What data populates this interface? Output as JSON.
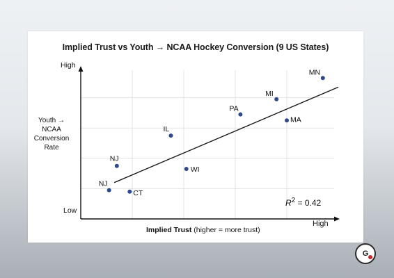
{
  "chart_data": {
    "type": "scatter",
    "title": "Implied Trust vs Youth → NCAA Hockey Conversion (9 US States)",
    "ylabel_lines": [
      "Youth →",
      "NCAA",
      "Conversion",
      "Rate"
    ],
    "xlabel_bold": "Implied Trust",
    "xlabel_rest": " (higher = more trust)",
    "x_low_label": "",
    "x_high_label": "High",
    "y_high_label": "High",
    "y_low_label": "Low",
    "xlim": [
      0,
      10
    ],
    "ylim": [
      0,
      10
    ],
    "grid": true,
    "points": [
      {
        "label": "MN",
        "x": 9.4,
        "y": 9.3
      },
      {
        "label": "MI",
        "x": 7.6,
        "y": 7.9
      },
      {
        "label": "PA",
        "x": 6.2,
        "y": 6.9
      },
      {
        "label": "MA",
        "x": 8.0,
        "y": 6.5
      },
      {
        "label": "IL",
        "x": 3.5,
        "y": 5.5
      },
      {
        "label": "NJ",
        "x": 1.4,
        "y": 3.5
      },
      {
        "label": "WI",
        "x": 4.1,
        "y": 3.3
      },
      {
        "label": "NJ",
        "x": 1.1,
        "y": 1.9
      },
      {
        "label": "CT",
        "x": 1.9,
        "y": 1.8
      }
    ],
    "trendline": {
      "x": [
        1.3,
        10.0
      ],
      "y": [
        2.4,
        8.7
      ]
    },
    "r2_text": "= 0.42",
    "r2_symbol": "R",
    "r2_exp": "2",
    "point_color": "#2e4a8c"
  },
  "brand": {
    "logo_text": "G"
  }
}
